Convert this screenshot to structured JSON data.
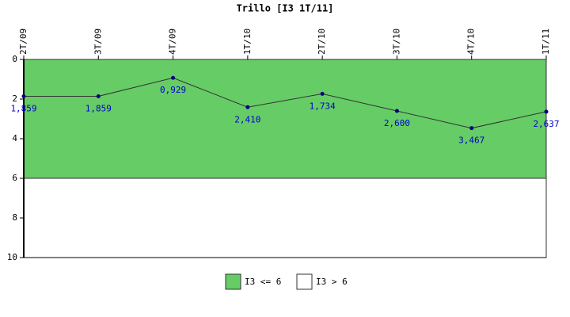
{
  "chart_data": {
    "type": "line",
    "title": "Trillo [I3 1T/11]",
    "categories": [
      "2T/09",
      "3T/09",
      "4T/09",
      "1T/10",
      "2T/10",
      "3T/10",
      "4T/10",
      "1T/11"
    ],
    "values": [
      1.859,
      1.859,
      0.929,
      2.41,
      1.734,
      2.6,
      3.467,
      2.637
    ],
    "value_labels": [
      "1,859",
      "1,859",
      "0,929",
      "2,410",
      "1,734",
      "2,600",
      "3,467",
      "2,637"
    ],
    "line_color": "#333333",
    "marker_color": "#000080",
    "label_color": "#0000cc",
    "ylim": [
      0,
      10
    ],
    "yticks": [
      0,
      2,
      4,
      6,
      8,
      10
    ],
    "y_inverted": true,
    "bands": [
      {
        "name": "I3 <= 6",
        "color": "#66cc66",
        "range": [
          0,
          6
        ]
      },
      {
        "name": "I3 > 6",
        "color": "#ffffff",
        "range": [
          6,
          10
        ]
      }
    ]
  }
}
